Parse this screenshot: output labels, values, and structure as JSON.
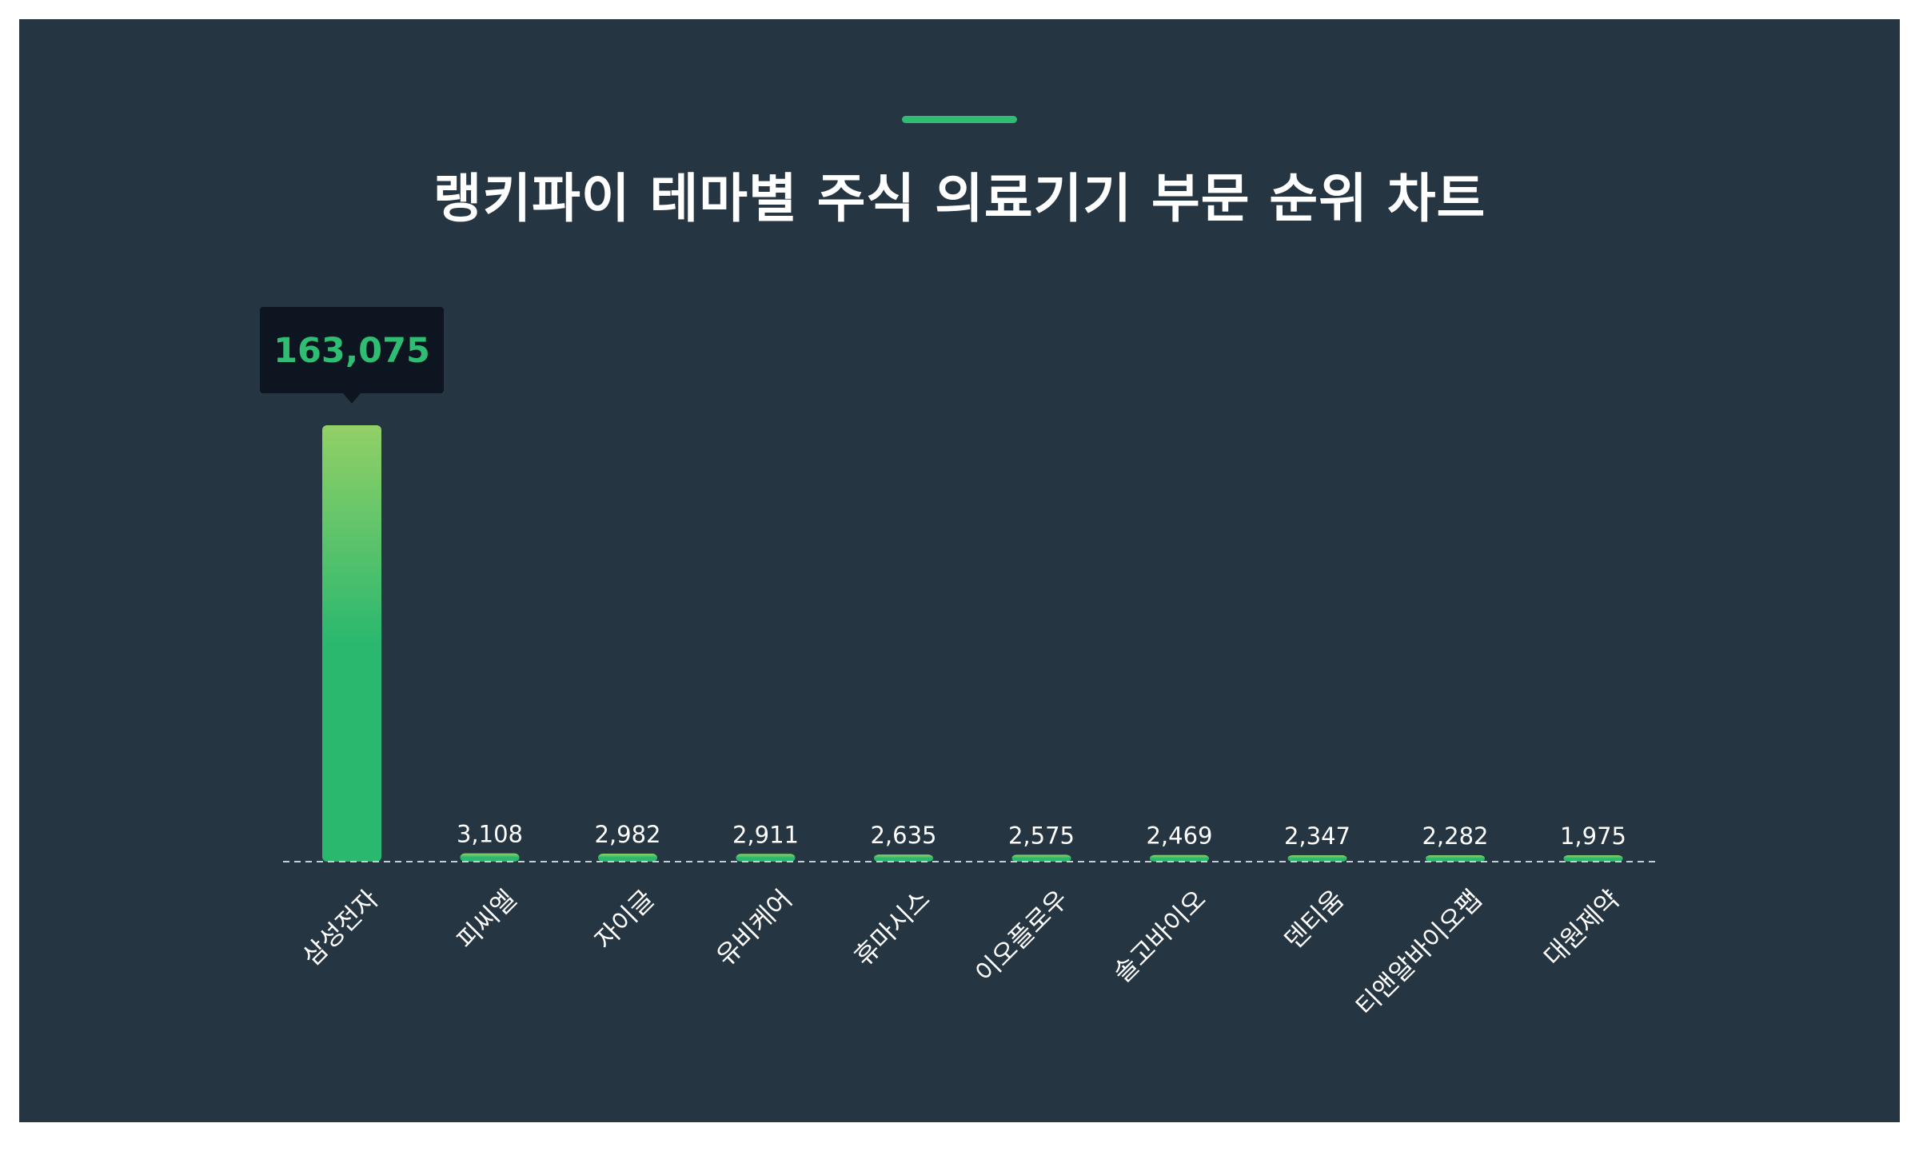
{
  "title": "랭키파이 테마별 주식 의료기기 부문 순위 차트",
  "colors": {
    "background": "#263542",
    "accent": "#2ebd72",
    "bar_top": "#92d066",
    "bar_bottom": "#2ab86f",
    "tooltip_bg": "#0d1620",
    "tooltip_text": "#2ebd72",
    "label_text": "#ffffff",
    "baseline": "#c9ced3"
  },
  "tooltip": {
    "category": "삼성전자",
    "value_text": "163,075"
  },
  "chart_data": {
    "type": "bar",
    "title": "랭키파이 테마별 주식 의료기기 부문 순위 차트",
    "xlabel": "",
    "ylabel": "",
    "grid": false,
    "categories": [
      "삼성전자",
      "피씨엘",
      "자이글",
      "유비케어",
      "휴마시스",
      "이오플로우",
      "솔고바이오",
      "덴티움",
      "티앤알바이오팹",
      "대원제약"
    ],
    "values": [
      163075,
      3108,
      2982,
      2911,
      2635,
      2575,
      2469,
      2347,
      2282,
      1975
    ],
    "value_labels": [
      "163,075",
      "3,108",
      "2,982",
      "2,911",
      "2,635",
      "2,575",
      "2,469",
      "2,347",
      "2,282",
      "1,975"
    ],
    "ylim": [
      0,
      163075
    ]
  }
}
